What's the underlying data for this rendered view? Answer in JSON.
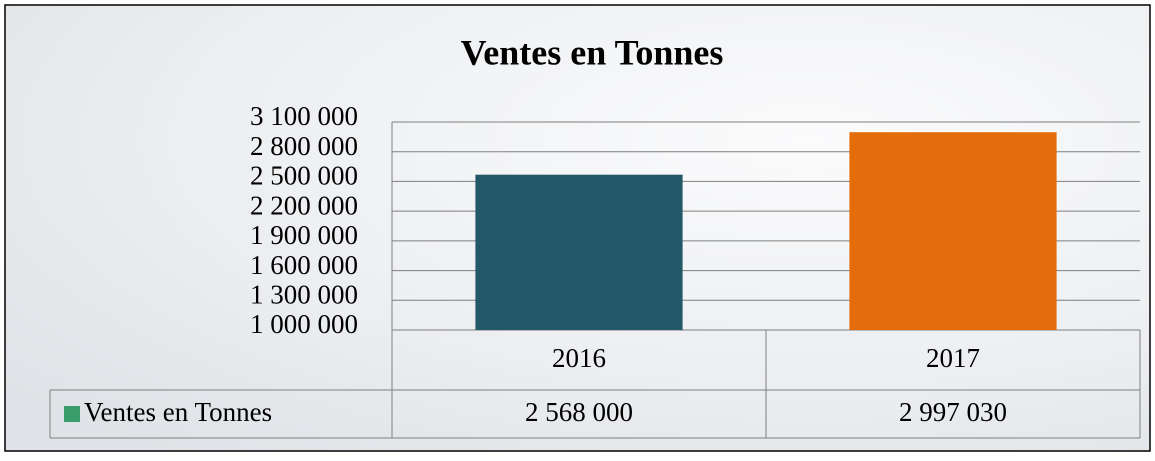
{
  "chart_data": {
    "type": "bar",
    "title": "Ventes en Tonnes",
    "categories": [
      "2016",
      "2017"
    ],
    "series": [
      {
        "name": "Ventes en Tonnes",
        "color": "#3a9e6b",
        "values": [
          2568000,
          2997030
        ],
        "value_labels": [
          "2 568 000",
          "2 997 030"
        ]
      }
    ],
    "bar_colors": [
      "#235868",
      "#e46c0a"
    ],
    "ylim": [
      1000000,
      3100000
    ],
    "yticks": [
      {
        "value": 1000000,
        "label": "1 000 000"
      },
      {
        "value": 1300000,
        "label": "1 300 000"
      },
      {
        "value": 1600000,
        "label": "1 600 000"
      },
      {
        "value": 1900000,
        "label": "1 900 000"
      },
      {
        "value": 2200000,
        "label": "2 200 000"
      },
      {
        "value": 2500000,
        "label": "2 500 000"
      },
      {
        "value": 2800000,
        "label": "2 800 000"
      },
      {
        "value": 3100000,
        "label": "3 100 000"
      }
    ],
    "grid": true
  }
}
